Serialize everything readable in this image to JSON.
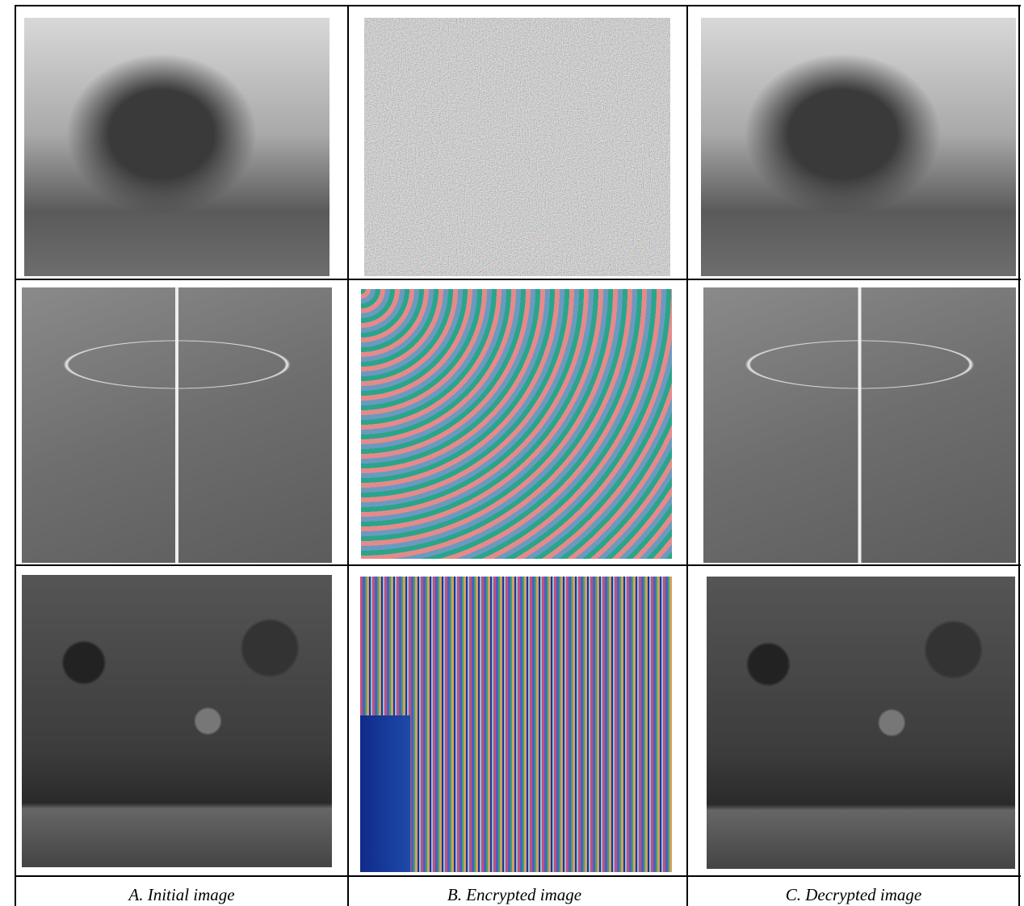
{
  "figure": {
    "captions": [
      "A. Initial image",
      "B. Encrypted image",
      "C. Decrypted image"
    ]
  }
}
